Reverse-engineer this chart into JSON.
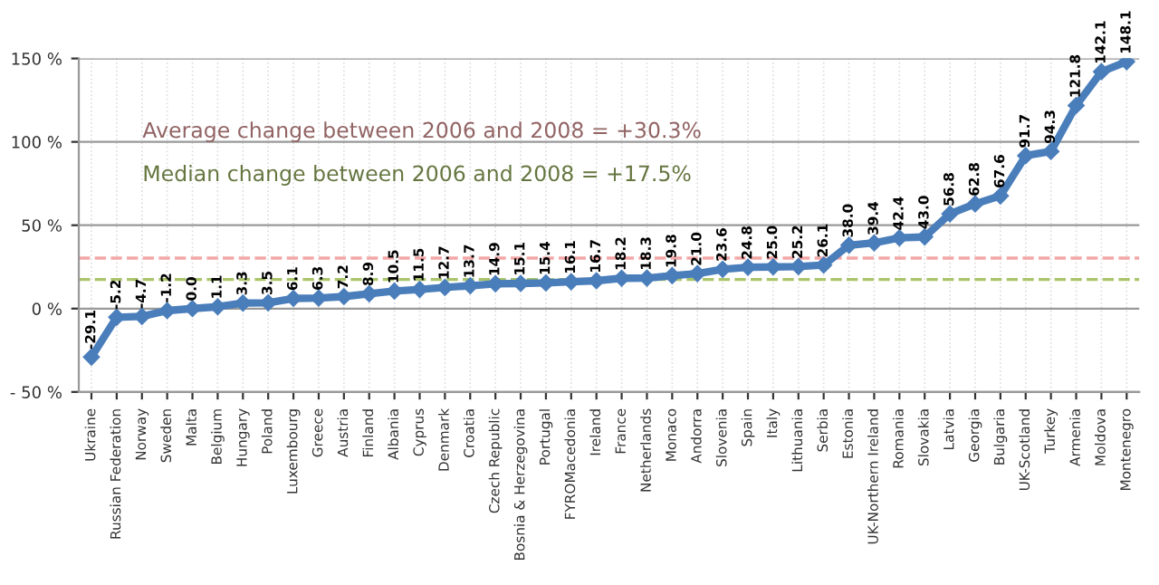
{
  "chart_data": {
    "type": "line",
    "categories": [
      "Ukraine",
      "Russian Federation",
      "Norway",
      "Sweden",
      "Malta",
      "Belgium",
      "Hungary",
      "Poland",
      "Luxembourg",
      "Greece",
      "Austria",
      "Finland",
      "Albania",
      "Cyprus",
      "Denmark",
      "Croatia",
      "Czech Republic",
      "Bosnia & Herzegovina",
      "Portugal",
      "FYROMacedonia",
      "Ireland",
      "France",
      "Netherlands",
      "Monaco",
      "Andorra",
      "Slovenia",
      "Spain",
      "Italy",
      "Lithuania",
      "Serbia",
      "Estonia",
      "UK-Northern Ireland",
      "Romania",
      "Slovakia",
      "Latvia",
      "Georgia",
      "Bulgaria",
      "UK-Scotland",
      "Turkey",
      "Armenia",
      "Moldova",
      "Montenegro"
    ],
    "series": [
      {
        "color": "#4a7ebb",
        "values": [
          -29.1,
          -5.2,
          -4.7,
          -1.2,
          0.0,
          1.1,
          3.3,
          3.5,
          6.1,
          6.3,
          7.2,
          8.9,
          10.5,
          11.5,
          12.7,
          13.7,
          14.9,
          15.1,
          15.4,
          16.1,
          16.7,
          18.2,
          18.3,
          19.8,
          21.0,
          23.6,
          24.8,
          25.0,
          25.2,
          26.1,
          38.0,
          39.4,
          42.4,
          43.0,
          56.8,
          62.8,
          67.6,
          91.7,
          94.3,
          121.8,
          142.1,
          148.1
        ]
      }
    ],
    "ylim": [
      -50,
      150
    ],
    "yticks": [
      {
        "value": -50,
        "label": "- 50 %"
      },
      {
        "value": 0,
        "label": "0 %"
      },
      {
        "value": 50,
        "label": "50 %"
      },
      {
        "value": 100,
        "label": "100 %"
      },
      {
        "value": 150,
        "label": "150 %"
      }
    ],
    "ref_lines": [
      {
        "axis": "y",
        "value": 30.3,
        "color": "#f4a6a6",
        "line_style": "dashed"
      },
      {
        "axis": "y",
        "value": 17.5,
        "color": "#a9c46a",
        "line_style": "dashed"
      }
    ],
    "annotations": [
      "Average change between 2006 and 2008 = +30.3%",
      "Median change between 2006 and 2008 = +17.5%"
    ],
    "value_labels": [
      "-29.1",
      "-5.2",
      "-4.7",
      "-1.2",
      "0.0",
      "1.1",
      "3.3",
      "3.5",
      "6.1",
      "6.3",
      "7.2",
      "8.9",
      "10.5",
      "11.5",
      "12.7",
      "13.7",
      "14.9",
      "15.1",
      "15.4",
      "16.1",
      "16.7",
      "18.2",
      "18.3",
      "19.8",
      "21.0",
      "23.6",
      "24.8",
      "25.0",
      "25.2",
      "26.1",
      "38.0",
      "39.4",
      "42.4",
      "43.0",
      "56.8",
      "62.8",
      "67.6",
      "91.7",
      "94.3",
      "121.8",
      "142.1",
      "148.1"
    ],
    "grid": true,
    "marker": "diamond",
    "line_style": "solid",
    "legend": false
  }
}
